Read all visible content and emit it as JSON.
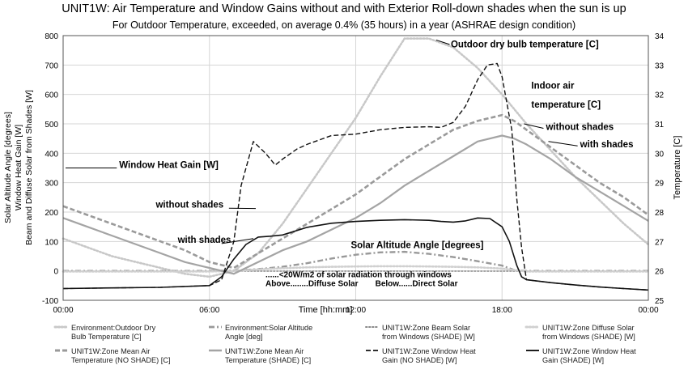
{
  "chart_data": {
    "type": "line",
    "title": "UNIT1W: Air Temperature and Window Gains without and with Exterior Roll-down shades when the sun is up",
    "subtitle": "For Outdoor Temperature, exceeded, on average 0.4% (35 hours) in a year (ASHRAE design condition)",
    "xlabel": "Time [hh:mm]",
    "ylabel_left": [
      "Solar Altitude Angle [degrees]",
      "Window Heat Gain [W]",
      "Beam and Diffuse Solar from Shades [W]"
    ],
    "ylabel_right": "Temperature [C]",
    "x_ticks": [
      "00:00",
      "06:00",
      "12:00",
      "18:00",
      "00:00"
    ],
    "x_tick_hours": [
      0,
      6,
      12,
      18,
      24
    ],
    "xlim": [
      0,
      24
    ],
    "ylim_left": [
      -100,
      800
    ],
    "ylim_right": [
      25,
      34
    ],
    "y_ticks_left": [
      -100,
      0,
      100,
      200,
      300,
      400,
      500,
      600,
      700,
      800
    ],
    "y_ticks_right": [
      25,
      26,
      27,
      28,
      29,
      30,
      31,
      32,
      33,
      34
    ],
    "grid": true,
    "legend_position": "bottom",
    "series": [
      {
        "name": "Environment:Outdoor Dry Bulb Temperature [C]",
        "axis": "right",
        "color": "#c8c8c8",
        "style": "dotted",
        "width": 2.6,
        "x": [
          0,
          1,
          2,
          3,
          4,
          5,
          6,
          7,
          8,
          9,
          10,
          11,
          12,
          13,
          14,
          15,
          16,
          17,
          18,
          19,
          20,
          21,
          22,
          23,
          24
        ],
        "y": [
          27.1,
          26.8,
          26.5,
          26.3,
          26.1,
          25.9,
          25.8,
          26.0,
          26.6,
          27.6,
          28.8,
          30.0,
          31.2,
          32.6,
          33.9,
          33.9,
          33.6,
          32.9,
          32.0,
          31.0,
          30.1,
          29.2,
          28.4,
          27.6,
          26.9
        ]
      },
      {
        "name": "Environment:Solar Altitude Angle [deg]",
        "axis": "left",
        "color": "#999999",
        "style": "dashdot",
        "width": 2.4,
        "x": [
          0,
          5.5,
          6,
          7,
          8,
          9,
          10,
          11,
          12,
          13,
          14,
          15,
          16,
          17,
          18,
          18.5,
          19,
          20,
          21,
          22,
          23,
          24
        ],
        "y": [
          0,
          0,
          0,
          1,
          6,
          14,
          26,
          42,
          55,
          63,
          65,
          58,
          47,
          33,
          18,
          3,
          0,
          0,
          0,
          0,
          0,
          0
        ]
      },
      {
        "name": "UNIT1W:Zone Beam Solar from Windows (SHADE) [W]",
        "axis": "left",
        "color": "#8a8a8a",
        "style": "dotted",
        "width": 1.6,
        "x": [
          0,
          24
        ],
        "y": [
          -1,
          -1
        ]
      },
      {
        "name": "UNIT1W:Zone Diffuse Solar from Windows (SHADE) [W]",
        "axis": "left",
        "color": "#d0d0d0",
        "style": "dotted",
        "width": 2.6,
        "x": [
          0,
          6,
          7,
          8,
          9,
          10,
          11,
          12,
          13,
          14,
          15,
          16,
          17,
          18,
          18.5,
          19,
          24
        ],
        "y": [
          -2,
          -2,
          0,
          5,
          9,
          12,
          14,
          15,
          16,
          16,
          15,
          14,
          12,
          8,
          3,
          -2,
          -2
        ]
      },
      {
        "name": "UNIT1W:Zone Mean Air Temperature (NO SHADE) [C]",
        "axis": "right",
        "color": "#9a9a9a",
        "style": "dashed",
        "width": 2.6,
        "x": [
          0,
          1,
          2,
          3,
          4,
          5,
          6,
          7,
          8,
          9,
          10,
          11,
          12,
          13,
          14,
          15,
          16,
          17,
          18,
          18.5,
          19,
          20,
          21,
          22,
          23,
          24
        ],
        "y": [
          28.2,
          27.9,
          27.6,
          27.3,
          27.0,
          26.7,
          26.3,
          26.1,
          26.6,
          27.1,
          27.6,
          28.1,
          28.6,
          29.2,
          29.8,
          30.3,
          30.8,
          31.1,
          31.3,
          31.1,
          30.8,
          30.2,
          29.6,
          29.0,
          28.5,
          27.9
        ]
      },
      {
        "name": "UNIT1W:Zone Mean Air Temperature (SHADE) [C]",
        "axis": "right",
        "color": "#a4a4a4",
        "style": "solid",
        "width": 2.2,
        "x": [
          0,
          1,
          2,
          3,
          4,
          5,
          6,
          7,
          8,
          9,
          10,
          11,
          12,
          13,
          14,
          15,
          16,
          17,
          18,
          18.5,
          19,
          20,
          21,
          22,
          23,
          24
        ],
        "y": [
          27.8,
          27.5,
          27.2,
          26.9,
          26.6,
          26.3,
          26.1,
          25.9,
          26.3,
          26.7,
          27.0,
          27.4,
          27.8,
          28.3,
          28.9,
          29.4,
          29.9,
          30.4,
          30.6,
          30.5,
          30.3,
          29.8,
          29.2,
          28.7,
          28.2,
          27.7
        ]
      },
      {
        "name": "UNIT1W:Zone Window Heat Gain (NO SHADE) [W]",
        "axis": "left",
        "color": "#111111",
        "style": "dashed",
        "width": 1.4,
        "x": [
          0,
          2,
          4,
          6,
          6.5,
          7,
          7.3,
          7.8,
          8.3,
          8.7,
          9,
          9.6,
          10,
          11,
          12,
          13,
          14,
          15,
          15.5,
          16,
          16.5,
          17,
          17.4,
          17.8,
          18,
          18.4,
          18.6,
          18.8,
          19,
          20,
          21,
          22,
          23,
          24
        ],
        "y": [
          -60,
          -58,
          -56,
          -50,
          -30,
          100,
          290,
          440,
          400,
          360,
          380,
          415,
          430,
          460,
          465,
          480,
          488,
          490,
          488,
          505,
          560,
          650,
          700,
          705,
          660,
          480,
          250,
          80,
          -30,
          -40,
          -48,
          -55,
          -60,
          -65
        ]
      },
      {
        "name": "UNIT1W:Zone Window Heat Gain (SHADE)  [W]",
        "axis": "left",
        "color": "#111111",
        "style": "solid",
        "width": 1.6,
        "x": [
          0,
          2,
          4,
          6,
          6.5,
          7,
          7.5,
          8,
          8.5,
          9,
          10,
          11,
          12,
          13,
          14,
          15,
          15.5,
          16,
          16.5,
          17,
          17.5,
          18,
          18.3,
          18.6,
          18.8,
          19,
          20,
          21,
          22,
          23,
          24
        ],
        "y": [
          -60,
          -58,
          -56,
          -50,
          -20,
          40,
          90,
          115,
          118,
          122,
          148,
          162,
          168,
          172,
          174,
          172,
          168,
          166,
          170,
          180,
          178,
          150,
          100,
          20,
          -20,
          -30,
          -40,
          -48,
          -55,
          -60,
          -65
        ]
      }
    ],
    "annotations": [
      {
        "text": "Outdoor dry bulb temperature [C]",
        "x_hour": 15.9,
        "y": 33.6,
        "axis": "right"
      },
      {
        "text": "Indoor air",
        "x_hour": 19.2,
        "y": 32.2,
        "axis": "right"
      },
      {
        "text": "temperature [C]",
        "x_hour": 19.2,
        "y": 31.55,
        "axis": "right"
      },
      {
        "text": "without shades",
        "x_hour": 19.8,
        "y": 30.8,
        "axis": "right"
      },
      {
        "text": "with shades",
        "x_hour": 21.2,
        "y": 30.2,
        "axis": "right"
      },
      {
        "text": "Window Heat Gain  [W]",
        "x_hour": 2.3,
        "y": 350,
        "axis": "left"
      },
      {
        "text": "without shades",
        "x_hour": 3.8,
        "y": 215,
        "axis": "left"
      },
      {
        "text": "with shades",
        "x_hour": 4.7,
        "y": 95,
        "axis": "left"
      },
      {
        "text": "Solar Altitude Angle [degrees]",
        "x_hour": 11.8,
        "y": 78,
        "axis": "left"
      },
      {
        "text": "......<20W/m2 of solar radiation through windows",
        "x_hour": 8.3,
        "y": -22,
        "axis": "left"
      },
      {
        "text": "Above........Diffuse Solar",
        "x_hour": 8.3,
        "y": -52,
        "axis": "left"
      },
      {
        "text": "Below......Direct Solar",
        "x_hour": 12.8,
        "y": -52,
        "axis": "left"
      }
    ]
  }
}
